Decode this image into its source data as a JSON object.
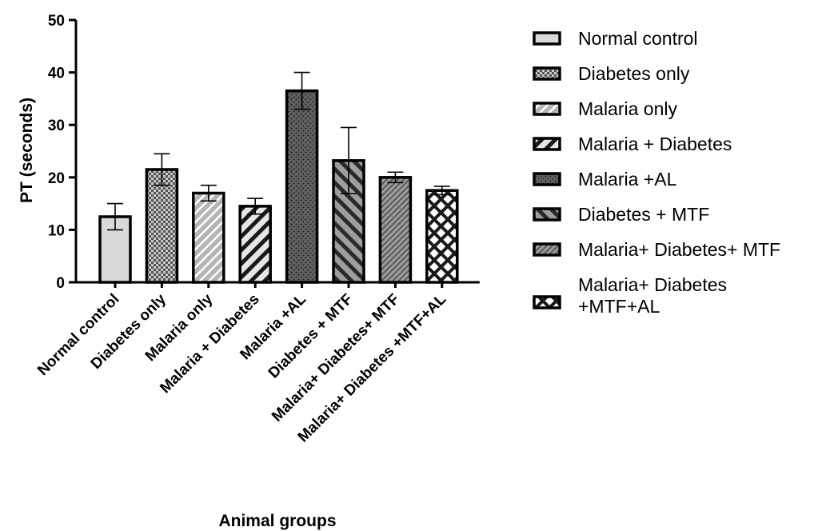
{
  "chart_data": {
    "type": "bar",
    "xlabel": "Animal groups",
    "ylabel": "PT (seconds)",
    "ylim": [
      0,
      50
    ],
    "yticks": [
      "0",
      "10",
      "20",
      "30",
      "40",
      "50"
    ],
    "categories": [
      "Normal control",
      "Diabetes only",
      "Malaria only",
      "Malaria + Diabetes",
      "Malaria +AL",
      "Diabetes + MTF",
      "Malaria+ Diabetes+ MTF",
      "Malaria+ Diabetes +MTF+AL"
    ],
    "values": [
      12.5,
      21.5,
      17.0,
      14.5,
      36.5,
      23.2,
      20.0,
      17.5
    ],
    "error": [
      2.5,
      3.0,
      1.5,
      1.5,
      3.5,
      6.3,
      1.0,
      0.8
    ],
    "grid": false,
    "legend_position": "right",
    "legend": [
      {
        "lines": [
          "Normal control"
        ],
        "pattern": "solid-light"
      },
      {
        "lines": [
          "Diabetes only"
        ],
        "pattern": "checker"
      },
      {
        "lines": [
          "Malaria only"
        ],
        "pattern": "diag-light"
      },
      {
        "lines": [
          "Malaria + Diabetes"
        ],
        "pattern": "diag-bold"
      },
      {
        "lines": [
          "Malaria +AL"
        ],
        "pattern": "dots-dark"
      },
      {
        "lines": [
          "Diabetes + MTF"
        ],
        "pattern": "backdiag"
      },
      {
        "lines": [
          "Malaria+ Diabetes+ MTF"
        ],
        "pattern": "diag-dense"
      },
      {
        "lines": [
          "Malaria+ Diabetes",
          "+MTF+AL"
        ],
        "pattern": "crosshatch"
      }
    ],
    "colors": {
      "light_fill": "#d9d9d9",
      "mid_fill": "#9a9a9a",
      "dark_fill": "#595959",
      "outline": "#000000"
    }
  }
}
